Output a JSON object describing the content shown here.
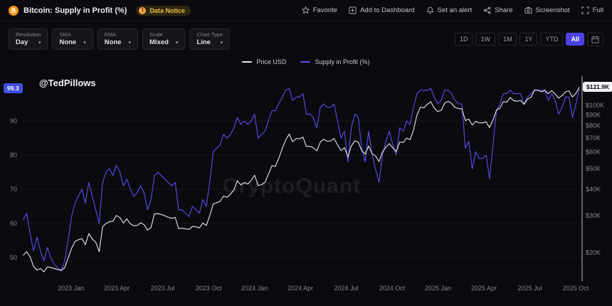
{
  "header": {
    "coin_glyph": "B",
    "title": "Bitcoin: Supply in Profit (%)",
    "data_notice": "Data Notice",
    "actions": [
      {
        "label": "Favorite",
        "icon": "star-icon"
      },
      {
        "label": "Add to Dashboard",
        "icon": "plus-square-icon"
      },
      {
        "label": "Set an alert",
        "icon": "bell-icon"
      },
      {
        "label": "Share",
        "icon": "share-icon"
      },
      {
        "label": "Screenshot",
        "icon": "camera-icon"
      },
      {
        "label": "Full",
        "icon": "expand-icon"
      }
    ]
  },
  "toolbar": {
    "controls": [
      {
        "label": "Resolution",
        "value": "Day"
      },
      {
        "label": "SMA",
        "value": "None"
      },
      {
        "label": "EMA",
        "value": "None"
      },
      {
        "label": "Scale",
        "value": "Mixed"
      },
      {
        "label": "Chart Type",
        "value": "Line"
      }
    ],
    "ranges": [
      "1D",
      "1W",
      "1M",
      "1Y",
      "YTD",
      "All"
    ],
    "active_range": "All"
  },
  "annotation": "@TedPillows",
  "watermark": "CryptoQuant",
  "colors": {
    "price_line": "#e8e8ec",
    "supply_line": "#5a4cf0",
    "accent_blue": "#4b43e5",
    "bitcoin_orange": "#f7931a",
    "left_badge_bg": "#4050e0",
    "right_badge_bg": "#f2f2f4"
  },
  "chart_data": {
    "type": "line",
    "title": "Bitcoin: Supply in Profit (%)",
    "x_start_year": 2022.74,
    "x_end_year": 2025.77,
    "x_ticks_years": [
      2023.0,
      2023.25,
      2023.5,
      2023.75,
      2024.0,
      2024.25,
      2024.5,
      2024.75,
      2025.0,
      2025.25,
      2025.5,
      2025.75
    ],
    "x_tick_labels": [
      "2023 Jan",
      "2023 Apr",
      "2023 Jul",
      "2023 Oct",
      "2024 Jan",
      "2024 Apr",
      "2024 Jul",
      "2024 Oct",
      "2025 Jan",
      "2025 Apr",
      "2025 Jul",
      "2025 Oct"
    ],
    "left_axis": {
      "label": "Supply in Profit (%)",
      "ticks": [
        50,
        60,
        70,
        80,
        90
      ],
      "range": [
        44,
        101
      ],
      "last_value_badge": "99.3"
    },
    "right_axis": {
      "label": "Price USD",
      "scale": "log",
      "ticks_k": [
        20,
        30,
        40,
        50,
        60,
        70,
        80,
        90,
        100
      ],
      "tick_labels": [
        "$20K",
        "$30K",
        "$40K",
        "$50K",
        "$60K",
        "$70K",
        "$80K",
        "$90K",
        "$100K"
      ],
      "last_value_badge": "$121.9K"
    },
    "series": [
      {
        "name": "Price USD",
        "unit": "USD (thousands)",
        "color": "#e8e8ec",
        "values": [
          19.4,
          20.2,
          19.1,
          17.2,
          16.5,
          16.8,
          16.2,
          17.1,
          17.0,
          16.8,
          16.6,
          16.5,
          16.9,
          18.8,
          20.9,
          22.6,
          23.0,
          23.3,
          21.8,
          24.6,
          23.2,
          22.4,
          20.2,
          26.5,
          27.5,
          28.0,
          28.2,
          30.0,
          29.3,
          27.6,
          28.9,
          27.4,
          26.8,
          26.9,
          27.7,
          27.1,
          25.6,
          26.3,
          30.5,
          30.6,
          30.3,
          29.9,
          29.4,
          29.1,
          29.4,
          26.0,
          26.1,
          25.9,
          25.8,
          26.6,
          26.5,
          26.2,
          27.6,
          26.9,
          29.9,
          34.0,
          34.5,
          35.0,
          37.1,
          36.6,
          37.8,
          39.7,
          43.8,
          41.9,
          43.0,
          42.3,
          44.0,
          46.6,
          41.6,
          42.0,
          43.1,
          47.1,
          51.7,
          51.3,
          56.0,
          62.4,
          68.5,
          73.1,
          67.2,
          69.6,
          69.4,
          70.6,
          63.8,
          63.9,
          62.9,
          60.8,
          66.9,
          69.0,
          67.5,
          67.7,
          69.6,
          64.9,
          61.0,
          63.0,
          57.0,
          64.1,
          67.9,
          66.8,
          60.9,
          58.7,
          64.1,
          59.0,
          57.5,
          54.1,
          60.0,
          63.3,
          65.8,
          62.8,
          60.3,
          67.0,
          66.6,
          69.9,
          68.7,
          76.5,
          90.0,
          98.0,
          97.3,
          101.2,
          104.0,
          97.0,
          93.5,
          94.6,
          102.3,
          104.5,
          102.1,
          97.7,
          96.6,
          96.1,
          84.7,
          86.0,
          80.7,
          84.0,
          82.6,
          82.5,
          83.5,
          78.4,
          85.2,
          94.7,
          96.9,
          104.1,
          103.5,
          109.0,
          105.0,
          104.6,
          105.5,
          101.0,
          107.1,
          108.9,
          118.0,
          117.9,
          115.8,
          118.0,
          113.5,
          117.4,
          112.9,
          108.2,
          111.3,
          115.9,
          116.9,
          109.6,
          114.0,
          121.9
        ]
      },
      {
        "name": "Supply in Profit (%)",
        "unit": "%",
        "color": "#5a4cf0",
        "values": [
          61,
          63,
          57,
          52,
          56,
          52,
          49,
          53,
          50,
          48,
          47,
          46,
          49,
          55,
          62,
          66,
          68,
          70,
          66,
          72,
          68,
          64,
          60,
          72,
          75,
          76,
          74,
          77,
          75,
          71,
          73,
          70,
          68,
          69,
          71,
          69,
          64,
          67,
          74,
          75,
          74,
          73,
          72,
          71,
          72,
          64,
          64,
          63,
          62,
          65,
          64,
          63,
          67,
          65,
          72,
          81,
          82,
          83,
          86,
          85,
          86,
          88,
          91,
          89,
          90,
          89,
          90,
          92,
          85,
          86,
          87,
          90,
          93,
          93,
          95,
          97,
          99,
          99.5,
          96,
          97,
          97,
          98,
          92,
          92,
          91,
          88,
          94,
          95,
          94,
          94,
          95,
          90,
          85,
          87,
          78,
          88,
          92,
          91,
          82,
          78,
          87,
          80,
          76,
          72,
          80,
          84,
          87,
          83,
          80,
          88,
          87,
          90,
          89,
          94,
          98,
          99,
          99,
          99,
          99.5,
          97,
          95,
          96,
          99,
          99,
          98,
          96,
          95,
          95,
          82,
          84,
          76,
          81,
          79,
          79,
          80,
          73,
          83,
          93,
          95,
          98,
          98,
          99,
          98,
          98,
          98,
          95,
          97,
          98,
          99,
          99,
          99,
          99,
          96,
          98,
          96,
          92,
          94,
          97,
          97,
          91,
          95,
          99.3
        ]
      }
    ]
  }
}
